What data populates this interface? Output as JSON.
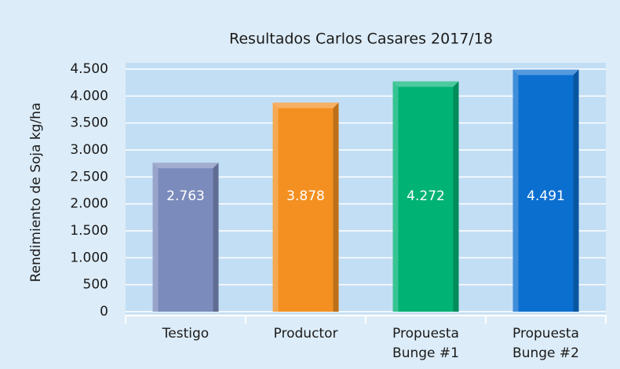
{
  "chart_data": {
    "type": "bar",
    "title": "Resultados Carlos Casares 2017/18",
    "y_axis_label": "Rendimiento de Soja kg/ha",
    "categories": [
      "Testigo",
      "Productor",
      "Propuesta Bunge #1",
      "Propuesta Bunge #2"
    ],
    "values": [
      2763,
      3878,
      4272,
      4491
    ],
    "value_labels": [
      "2.763",
      "3.878",
      "4.272",
      "4.491"
    ],
    "colors": [
      "#7b8bbb",
      "#f39021",
      "#00b274",
      "#0b6fd0"
    ],
    "ylim": [
      0,
      4500
    ],
    "yticks": [
      0,
      500,
      {
        "value": 1000,
        "label": "1.000"
      },
      {
        "value": 1500,
        "label": "1.500"
      },
      {
        "value": 2000,
        "label": "2.000"
      },
      {
        "value": 2500,
        "label": "2.500"
      },
      {
        "value": 3000,
        "label": "3.000"
      },
      {
        "value": 3500,
        "label": "3.500"
      },
      {
        "value": 4000,
        "label": "4.000"
      },
      {
        "value": 4500,
        "label": "4.500"
      }
    ],
    "grid": true
  }
}
